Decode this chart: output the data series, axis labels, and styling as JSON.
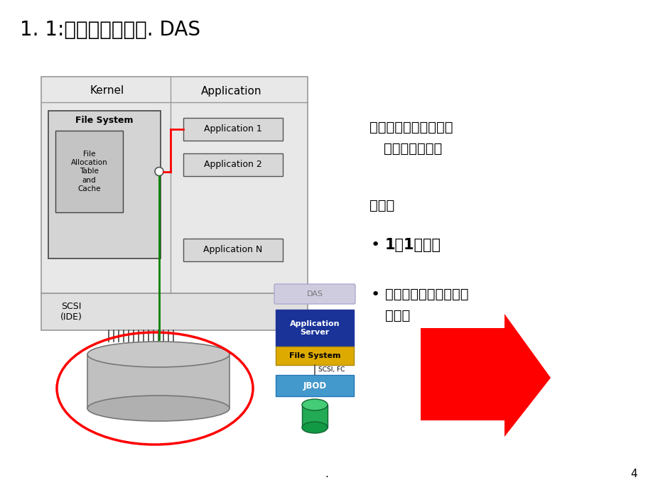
{
  "title": "1. 1:分布式存储历程. DAS",
  "title_fontsize": 20,
  "bg_color": "#ffffff",
  "text_right_1a": "用于操作系统和应用程",
  "text_right_1b": "序的本地存储。",
  "text_right_2": "缺点：",
  "text_right_3": "1对1，单点",
  "text_right_4a": "数据无法再服务器之间",
  "text_right_4b": "共享。",
  "page_number": "4"
}
